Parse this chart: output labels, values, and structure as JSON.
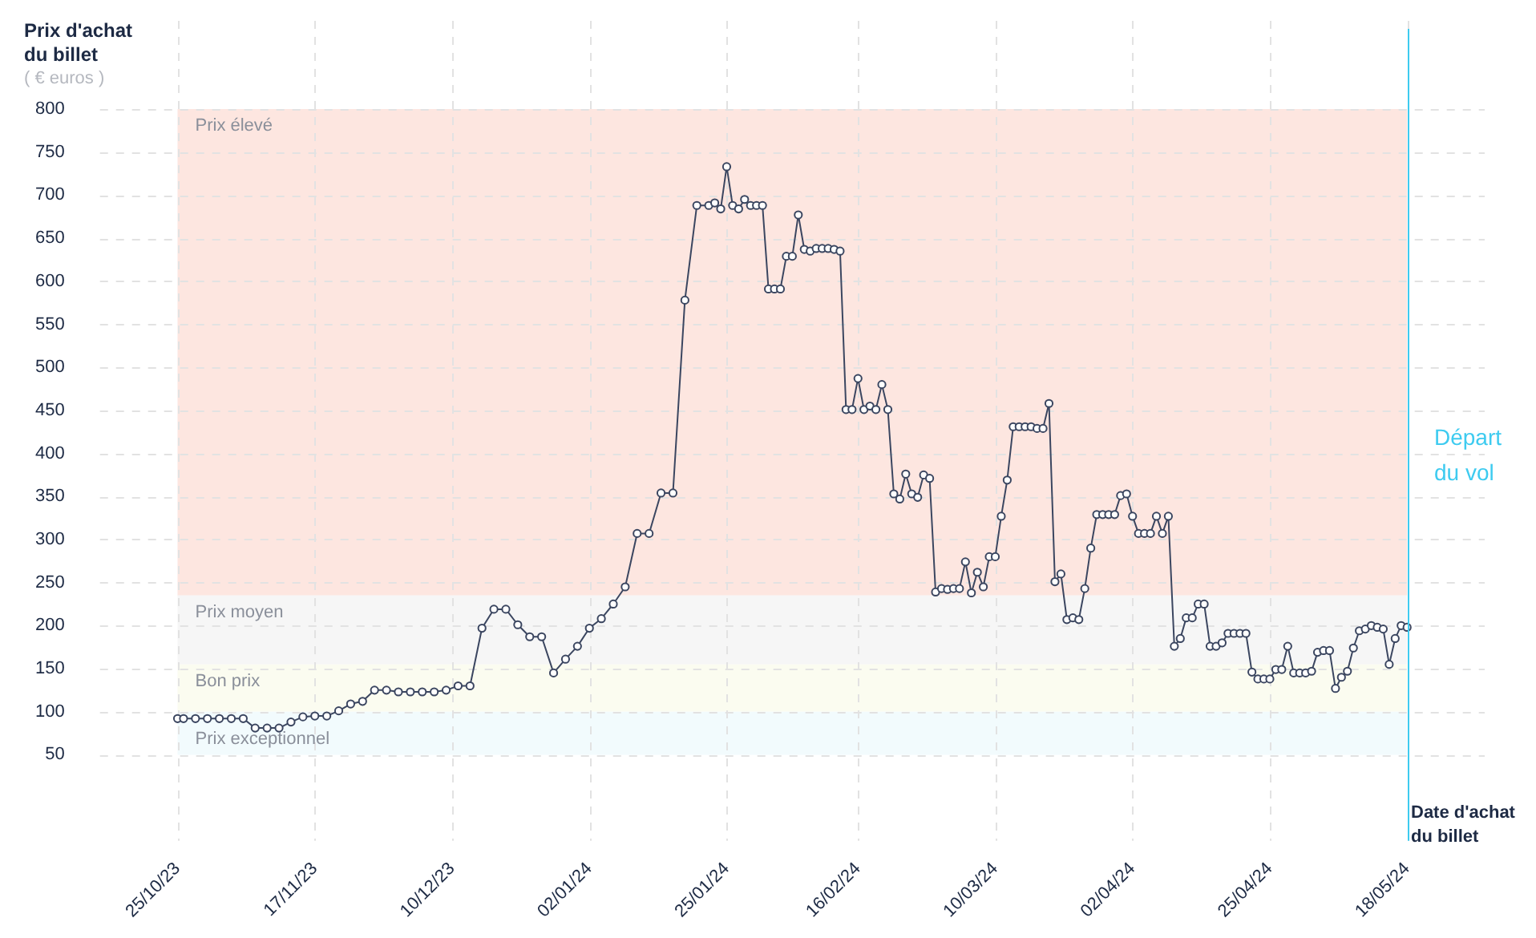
{
  "chart_data": {
    "type": "line",
    "xlabel": "Date d'achat du billet",
    "ylabel": "Prix d'achat du billet",
    "annotations": [
      "( € euros )"
    ],
    "x": [
      "2023-10-25",
      "2023-10-26",
      "2023-10-28",
      "2023-10-30",
      "2023-11-01",
      "2023-11-03",
      "2023-11-05",
      "2023-11-07",
      "2023-11-09",
      "2023-11-11",
      "2023-11-13",
      "2023-11-15",
      "2023-11-17",
      "2023-11-19",
      "2023-11-21",
      "2023-11-23",
      "2023-11-25",
      "2023-11-27",
      "2023-11-29",
      "2023-12-01",
      "2023-12-03",
      "2023-12-05",
      "2023-12-07",
      "2023-12-09",
      "2023-12-11",
      "2023-12-13",
      "2023-12-15",
      "2023-12-17",
      "2023-12-19",
      "2023-12-21",
      "2023-12-23",
      "2023-12-25",
      "2023-12-27",
      "2023-12-29",
      "2023-12-31",
      "2024-01-02",
      "2024-01-04",
      "2024-01-06",
      "2024-01-08",
      "2024-01-10",
      "2024-01-12",
      "2024-01-14",
      "2024-01-16",
      "2024-01-18",
      "2024-01-20",
      "2024-01-22",
      "2024-01-23",
      "2024-01-24",
      "2024-01-25",
      "2024-01-26",
      "2024-01-27",
      "2024-01-28",
      "2024-01-29",
      "2024-01-30",
      "2024-01-31",
      "2024-02-01",
      "2024-02-02",
      "2024-02-03",
      "2024-02-04",
      "2024-02-05",
      "2024-02-06",
      "2024-02-07",
      "2024-02-08",
      "2024-02-09",
      "2024-02-10",
      "2024-02-11",
      "2024-02-12",
      "2024-02-13",
      "2024-02-14",
      "2024-02-15",
      "2024-02-16",
      "2024-02-17",
      "2024-02-18",
      "2024-02-19",
      "2024-02-20",
      "2024-02-21",
      "2024-02-22",
      "2024-02-23",
      "2024-02-24",
      "2024-02-25",
      "2024-02-26",
      "2024-02-27",
      "2024-02-28",
      "2024-02-29",
      "2024-03-01",
      "2024-03-02",
      "2024-03-03",
      "2024-03-04",
      "2024-03-05",
      "2024-03-06",
      "2024-03-07",
      "2024-03-08",
      "2024-03-09",
      "2024-03-10",
      "2024-03-11",
      "2024-03-12",
      "2024-03-13",
      "2024-03-14",
      "2024-03-15",
      "2024-03-16",
      "2024-03-17",
      "2024-03-18",
      "2024-03-19",
      "2024-03-20",
      "2024-03-21",
      "2024-03-22",
      "2024-03-23",
      "2024-03-24",
      "2024-03-25",
      "2024-03-26",
      "2024-03-27",
      "2024-03-28",
      "2024-03-29",
      "2024-03-30",
      "2024-03-31",
      "2024-04-01",
      "2024-04-02",
      "2024-04-03",
      "2024-04-04",
      "2024-04-05",
      "2024-04-06",
      "2024-04-07",
      "2024-04-08",
      "2024-04-09",
      "2024-04-10",
      "2024-04-11",
      "2024-04-12",
      "2024-04-13",
      "2024-04-14",
      "2024-04-15",
      "2024-04-16",
      "2024-04-17",
      "2024-04-18",
      "2024-04-19",
      "2024-04-20",
      "2024-04-21",
      "2024-04-22",
      "2024-04-23",
      "2024-04-24",
      "2024-04-25",
      "2024-04-26",
      "2024-04-27",
      "2024-04-28",
      "2024-04-29",
      "2024-04-30",
      "2024-05-01",
      "2024-05-02",
      "2024-05-03",
      "2024-05-04",
      "2024-05-05",
      "2024-05-06",
      "2024-05-07",
      "2024-05-08",
      "2024-05-09",
      "2024-05-10",
      "2024-05-11",
      "2024-05-12",
      "2024-05-13",
      "2024-05-14",
      "2024-05-15",
      "2024-05-16",
      "2024-05-17",
      "2024-05-18"
    ],
    "series": [
      {
        "color": "#3b4660",
        "values": [
          92,
          92,
          92,
          92,
          92,
          92,
          92,
          81,
          81,
          81,
          88,
          94,
          95,
          95,
          101,
          109,
          112,
          125,
          125,
          123,
          123,
          123,
          123,
          125,
          130,
          130,
          197,
          219,
          219,
          201,
          187,
          187,
          145,
          161,
          176,
          197,
          208,
          225,
          245,
          307,
          307,
          354,
          354,
          578,
          688,
          688,
          691,
          684,
          733,
          688,
          684,
          695,
          688,
          688,
          688,
          591,
          591,
          591,
          629,
          629,
          677,
          637,
          635,
          638,
          638,
          638,
          637,
          635,
          451,
          451,
          487,
          451,
          455,
          451,
          480,
          451,
          353,
          347,
          376,
          353,
          349,
          375,
          371,
          239,
          243,
          242,
          243,
          243,
          274,
          238,
          262,
          245,
          280,
          280,
          327,
          369,
          431,
          431,
          431,
          431,
          429,
          429,
          458,
          251,
          260,
          207,
          209,
          207,
          243,
          290,
          329,
          329,
          329,
          329,
          351,
          353,
          327,
          307,
          307,
          307,
          327,
          307,
          327,
          176,
          185,
          209,
          209,
          225,
          225,
          176,
          176,
          180,
          191,
          191,
          191,
          191,
          146,
          138,
          138,
          138,
          149,
          149,
          176,
          145,
          145,
          145,
          147,
          169,
          171,
          171,
          127,
          140,
          147,
          174,
          194,
          196,
          200,
          198,
          196,
          155,
          185,
          200,
          198
        ]
      }
    ],
    "xlim": [
      "2023-10-12",
      "2024-05-31"
    ],
    "ylim": [
      -50,
      800
    ],
    "xticks": [
      {
        "value": "2023-10-25",
        "label": "25/10/23"
      },
      {
        "value": "2023-11-17",
        "label": "17/11/23"
      },
      {
        "value": "2023-12-10",
        "label": "10/12/23"
      },
      {
        "value": "2024-01-02",
        "label": "02/01/24"
      },
      {
        "value": "2024-01-25",
        "label": "25/01/24"
      },
      {
        "value": "2024-02-16",
        "label": "16/02/24"
      },
      {
        "value": "2024-03-10",
        "label": "10/03/24"
      },
      {
        "value": "2024-04-02",
        "label": "02/04/24"
      },
      {
        "value": "2024-04-25",
        "label": "25/04/24"
      },
      {
        "value": "2024-05-18",
        "label": "18/05/24"
      }
    ],
    "yticks": [
      50,
      100,
      150,
      200,
      250,
      300,
      350,
      400,
      450,
      500,
      550,
      600,
      650,
      700,
      750,
      800
    ],
    "grid": true,
    "marker": "circle",
    "line_style": "solid",
    "bands": [
      {
        "axis": "y",
        "from": 235,
        "to": 800,
        "label": "Prix élevé",
        "color": "#fde6e0"
      },
      {
        "axis": "y",
        "from": 155,
        "to": 235,
        "label": "Prix moyen",
        "color": "#f6f6f6"
      },
      {
        "axis": "y",
        "from": 100,
        "to": 155,
        "label": "Bon prix",
        "color": "#fbfcf0"
      },
      {
        "axis": "y",
        "from": 50,
        "to": 100,
        "label": "Prix exceptionnel",
        "color": "#f2fbfd"
      }
    ],
    "ref_lines": [
      {
        "axis": "x",
        "value": "2024-05-18",
        "label": "Départ du vol",
        "color": "#3ecbf0"
      }
    ]
  }
}
